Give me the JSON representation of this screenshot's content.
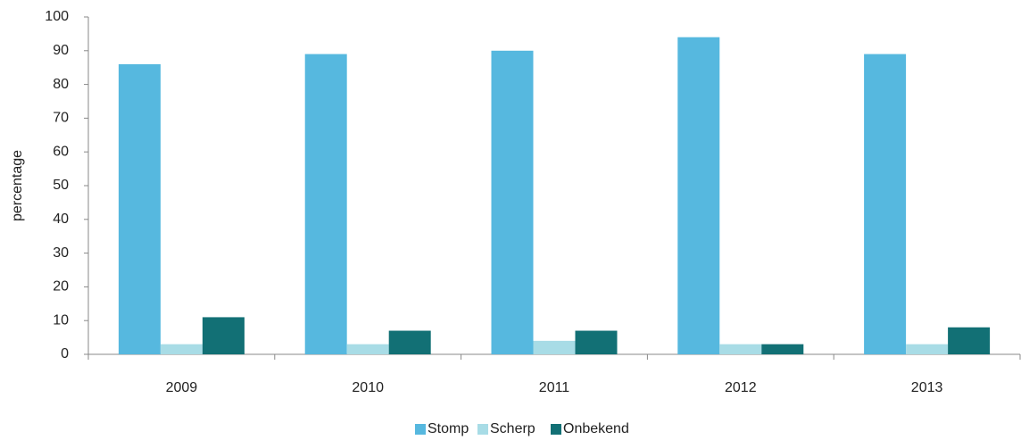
{
  "chart_data": {
    "type": "bar",
    "y_label": "percentage",
    "categories": [
      "2009",
      "2010",
      "2011",
      "2012",
      "2013"
    ],
    "series": [
      {
        "name": "Stomp",
        "color": "#56b8df",
        "values": [
          86,
          89,
          90,
          94,
          89
        ]
      },
      {
        "name": "Scherp",
        "color": "#a8dce6",
        "values": [
          3,
          3,
          4,
          3,
          3
        ]
      },
      {
        "name": "Onbekend",
        "color": "#127075",
        "values": [
          11,
          7,
          7,
          3,
          8
        ]
      }
    ],
    "ylim": [
      0,
      100
    ],
    "yticks": [
      0,
      10,
      20,
      30,
      40,
      50,
      60,
      70,
      80,
      90,
      100
    ],
    "grid": false,
    "legend": "bottom"
  }
}
